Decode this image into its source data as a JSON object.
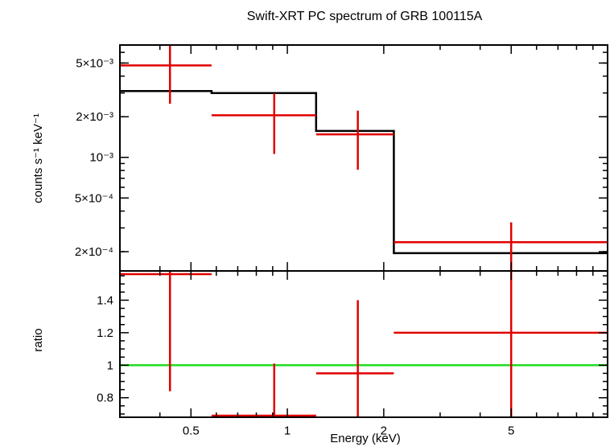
{
  "chart_data": {
    "type": "scatter",
    "title": "Swift-XRT PC spectrum of GRB 100115A",
    "xlabel": "Energy (keV)",
    "x_scale": "log",
    "xlim": [
      0.3,
      10
    ],
    "x_ticks": [
      {
        "value": 0.5,
        "label": "0.5"
      },
      {
        "value": 1,
        "label": "1"
      },
      {
        "value": 2,
        "label": "2"
      },
      {
        "value": 5,
        "label": "5"
      }
    ],
    "panels": [
      {
        "id": "spectrum",
        "ylabel": "counts s⁻¹ keV⁻¹",
        "y_scale": "log",
        "ylim": [
          0.000144,
          0.0068
        ],
        "y_ticks": [
          {
            "value": 0.0002,
            "label": "2×10⁻⁴"
          },
          {
            "value": 0.0005,
            "label": "5×10⁻⁴"
          },
          {
            "value": 0.001,
            "label": "10⁻³"
          },
          {
            "value": 0.002,
            "label": "2×10⁻³"
          },
          {
            "value": 0.005,
            "label": "5×10⁻³"
          }
        ],
        "data_points": [
          {
            "x_lo": 0.3,
            "x": 0.43,
            "x_hi": 0.58,
            "y": 0.0048,
            "y_lo": 0.0025,
            "y_hi": 0.0068,
            "color": "#e00000"
          },
          {
            "x_lo": 0.58,
            "x": 0.91,
            "x_hi": 1.23,
            "y": 0.00205,
            "y_lo": 0.00106,
            "y_hi": 0.00298,
            "color": "#e00000"
          },
          {
            "x_lo": 1.23,
            "x": 1.66,
            "x_hi": 2.15,
            "y": 0.00148,
            "y_lo": 0.00081,
            "y_hi": 0.00222,
            "color": "#e00000"
          },
          {
            "x_lo": 2.15,
            "x": 5.0,
            "x_hi": 10.0,
            "y": 0.000235,
            "y_lo": 0.000144,
            "y_hi": 0.00033,
            "color": "#e00000"
          }
        ],
        "model_steps": [
          {
            "x_lo": 0.3,
            "x_hi": 0.58,
            "y": 0.0031
          },
          {
            "x_lo": 0.58,
            "x_hi": 1.23,
            "y": 0.003
          },
          {
            "x_lo": 1.23,
            "x_hi": 2.15,
            "y": 0.00157
          },
          {
            "x_lo": 2.15,
            "x_hi": 10.0,
            "y": 0.000195
          }
        ],
        "model_color": "#000000"
      },
      {
        "id": "ratio",
        "ylabel": "ratio",
        "y_scale": "linear",
        "ylim": [
          0.68,
          1.58
        ],
        "y_ticks": [
          {
            "value": 0.8,
            "label": "0.8"
          },
          {
            "value": 1,
            "label": "1"
          },
          {
            "value": 1.2,
            "label": "1.2"
          },
          {
            "value": 1.4,
            "label": "1.4"
          }
        ],
        "data_points": [
          {
            "x_lo": 0.3,
            "x": 0.43,
            "x_hi": 0.58,
            "y": 1.56,
            "y_lo": 0.84,
            "y_hi": 1.58,
            "color": "#e00000"
          },
          {
            "x_lo": 0.58,
            "x": 0.91,
            "x_hi": 1.23,
            "y": 0.69,
            "y_lo": 0.68,
            "y_hi": 1.01,
            "color": "#e00000"
          },
          {
            "x_lo": 1.23,
            "x": 1.66,
            "x_hi": 2.15,
            "y": 0.95,
            "y_lo": 0.68,
            "y_hi": 1.4,
            "color": "#e00000"
          },
          {
            "x_lo": 2.15,
            "x": 5.0,
            "x_hi": 10.0,
            "y": 1.2,
            "y_lo": 0.68,
            "y_hi": 1.58,
            "color": "#e00000"
          }
        ],
        "reference_line": {
          "y": 1,
          "color": "#22dd22"
        }
      }
    ]
  }
}
